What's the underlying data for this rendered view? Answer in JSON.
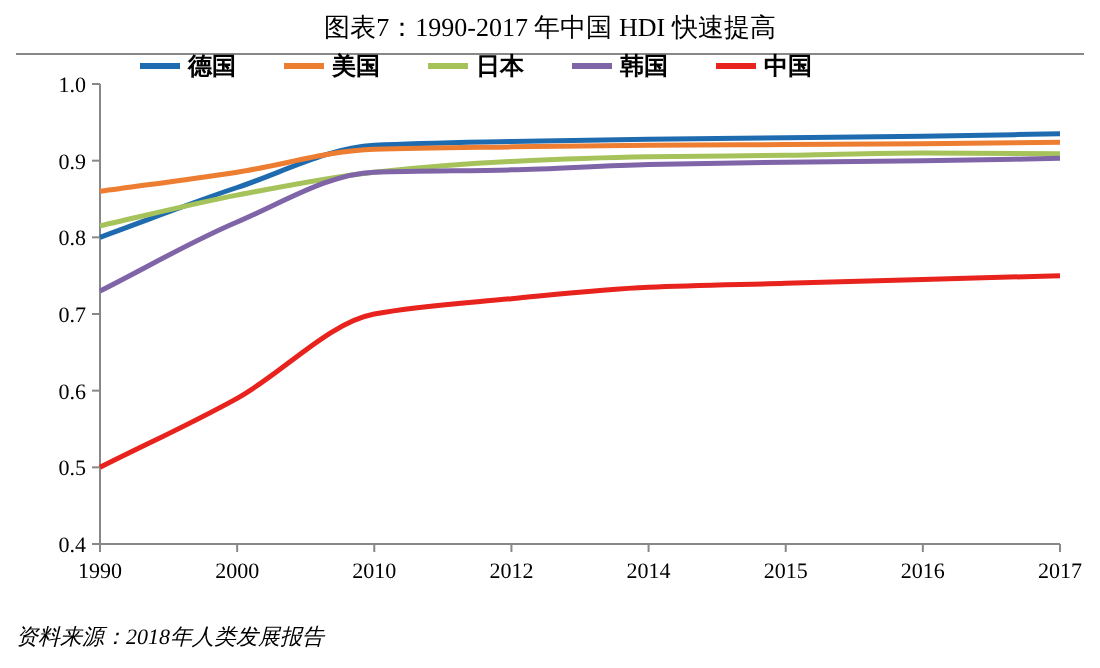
{
  "chart_data": {
    "type": "line",
    "title": "图表7：1990-2017 年中国 HDI 快速提高",
    "categories": [
      "1990",
      "2000",
      "2010",
      "2012",
      "2014",
      "2015",
      "2016",
      "2017"
    ],
    "series": [
      {
        "name": "德国",
        "color": "#1f6bb0",
        "values": [
          0.8,
          0.865,
          0.92,
          0.925,
          0.928,
          0.93,
          0.932,
          0.935
        ]
      },
      {
        "name": "美国",
        "color": "#ed7d31",
        "values": [
          0.86,
          0.885,
          0.915,
          0.918,
          0.92,
          0.921,
          0.922,
          0.924
        ]
      },
      {
        "name": "日本",
        "color": "#a5c35a",
        "values": [
          0.815,
          0.855,
          0.885,
          0.899,
          0.905,
          0.907,
          0.91,
          0.909
        ]
      },
      {
        "name": "韩国",
        "color": "#7f65a8",
        "values": [
          0.73,
          0.82,
          0.885,
          0.888,
          0.895,
          0.898,
          0.9,
          0.903
        ]
      },
      {
        "name": "中国",
        "color": "#e8221c",
        "values": [
          0.5,
          0.59,
          0.7,
          0.72,
          0.735,
          0.74,
          0.745,
          0.75
        ]
      }
    ],
    "ylim": [
      0.4,
      1.0
    ],
    "yticks": [
      {
        "value": 0.4,
        "label": "0.4"
      },
      {
        "value": 0.5,
        "label": "0.5"
      },
      {
        "value": 0.6,
        "label": "0.6"
      },
      {
        "value": 0.7,
        "label": "0.7"
      },
      {
        "value": 0.8,
        "label": "0.8"
      },
      {
        "value": 0.9,
        "label": "0.9"
      },
      {
        "value": 1.0,
        "label": "1.0"
      }
    ],
    "grid": false,
    "legend": "top left",
    "marker": "none",
    "line_style": "solid",
    "annotations": [
      "资料来源：2018年人类发展报告"
    ]
  }
}
